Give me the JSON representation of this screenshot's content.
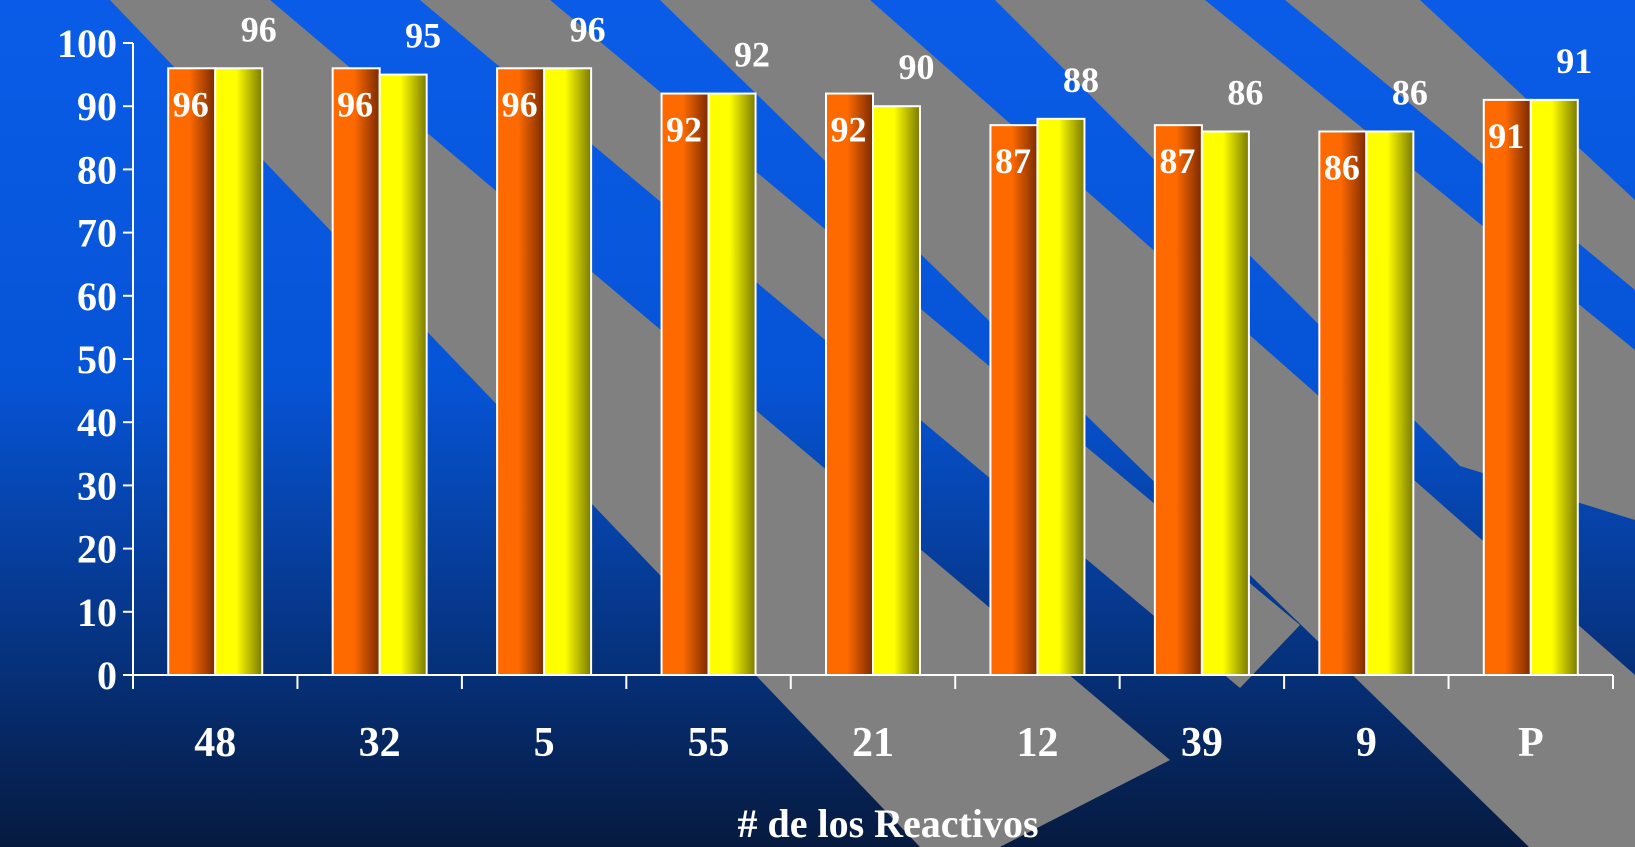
{
  "chart_data": {
    "type": "bar",
    "xlabel": "# de los Reactivos",
    "ylabel": "",
    "ylim": [
      0,
      100
    ],
    "yticks": [
      0,
      10,
      20,
      30,
      40,
      50,
      60,
      70,
      80,
      90,
      100
    ],
    "categories": [
      "48",
      "32",
      "5",
      "55",
      "21",
      "12",
      "39",
      "9",
      "P"
    ],
    "series": [
      {
        "values": [
          96,
          96,
          96,
          92,
          92,
          87,
          87,
          86,
          91
        ],
        "color": "#ff6a00",
        "dark": "#7a2a00",
        "label_pos": "inside"
      },
      {
        "values": [
          96,
          95,
          96,
          92,
          90,
          88,
          86,
          86,
          91
        ],
        "color": "#ffff00",
        "dark": "#7a7a00",
        "label_pos": "above"
      }
    ],
    "grid": false,
    "legend": "none"
  },
  "colors": {
    "background_top": "#0a5ce8",
    "background_bottom": "#061a3f",
    "stripe": "#808080",
    "text": "#ffffff"
  }
}
